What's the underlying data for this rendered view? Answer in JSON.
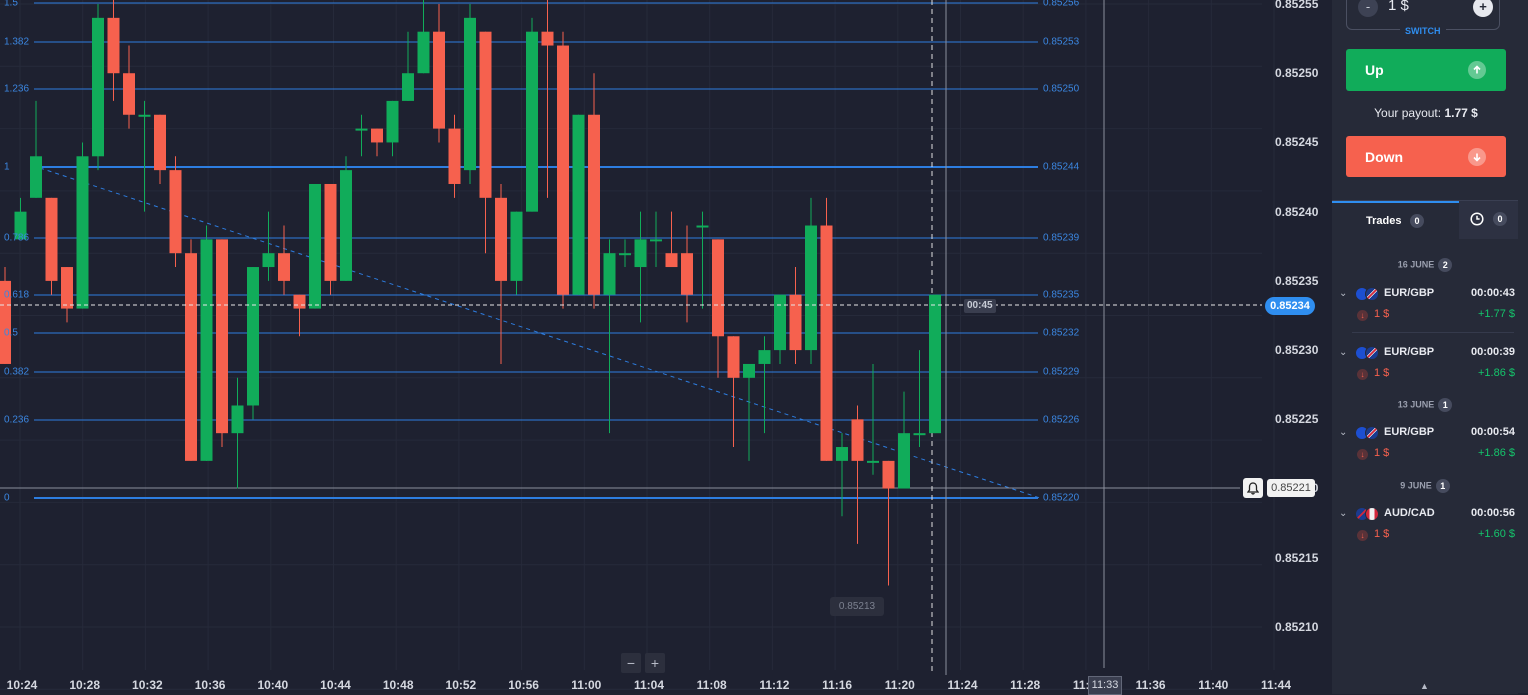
{
  "colors": {
    "bull": "#11ac5a",
    "bear": "#f6614e",
    "fib": "#2d7de0",
    "accent": "#2f8ef0",
    "background": "#1e2130"
  },
  "chart": {
    "price_axis": [
      "0.85255",
      "0.85250",
      "0.85245",
      "0.85240",
      "0.85235",
      "0.85230",
      "0.85225",
      "0.85220",
      "0.85215",
      "0.85210"
    ],
    "time_axis": [
      "10:24",
      "10:28",
      "10:32",
      "10:36",
      "10:40",
      "10:44",
      "10:48",
      "10:52",
      "10:56",
      "11:00",
      "11:04",
      "11:08",
      "11:12",
      "11:16",
      "11:20",
      "11:24",
      "11:28",
      "11:32",
      "11:36",
      "11:40",
      "11:44"
    ],
    "fib_levels": [
      {
        "ratio": "1.5",
        "price": "0.85256"
      },
      {
        "ratio": "1.382",
        "price": "0.85253"
      },
      {
        "ratio": "1.236",
        "price": "0.85250"
      },
      {
        "ratio": "1",
        "price": "0.85244"
      },
      {
        "ratio": "0.786",
        "price": "0.85239"
      },
      {
        "ratio": "0.618",
        "price": "0.85235"
      },
      {
        "ratio": "0.5",
        "price": "0.85232"
      },
      {
        "ratio": "0.382",
        "price": "0.85229"
      },
      {
        "ratio": "0.236",
        "price": "0.85226"
      },
      {
        "ratio": "0",
        "price": "0.85220"
      }
    ],
    "current_price": "0.85234",
    "countdown": "00:45",
    "alert_price": "0.85221",
    "low_marker": "0.85213",
    "cursor_time": "11:33",
    "candles": [
      [
        0.85235,
        0.85229,
        0.85229,
        0.85236
      ],
      [
        0.85238,
        0.8524,
        0.85238,
        0.85241
      ],
      [
        0.85241,
        0.85244,
        0.85241,
        0.85248
      ],
      [
        0.85241,
        0.85235,
        0.85234,
        0.85241
      ],
      [
        0.85236,
        0.85233,
        0.85232,
        0.85236
      ],
      [
        0.85233,
        0.85244,
        0.85233,
        0.85245
      ],
      [
        0.85244,
        0.85254,
        0.85243,
        0.85255
      ],
      [
        0.85254,
        0.8525,
        0.85248,
        0.85259
      ],
      [
        0.8525,
        0.85247,
        0.85246,
        0.85252
      ],
      [
        0.85247,
        0.85247,
        0.8524,
        0.85248
      ],
      [
        0.85247,
        0.85243,
        0.85242,
        0.85247
      ],
      [
        0.85243,
        0.85237,
        0.85236,
        0.85244
      ],
      [
        0.85237,
        0.85222,
        0.85222,
        0.85238
      ],
      [
        0.85222,
        0.85238,
        0.85222,
        0.85239
      ],
      [
        0.85238,
        0.85224,
        0.85223,
        0.85238
      ],
      [
        0.85224,
        0.85226,
        0.8522,
        0.85228
      ],
      [
        0.85226,
        0.85236,
        0.85225,
        0.85236
      ],
      [
        0.85236,
        0.85237,
        0.85235,
        0.8524
      ],
      [
        0.85237,
        0.85235,
        0.85234,
        0.85239
      ],
      [
        0.85234,
        0.85233,
        0.85231,
        0.85234
      ],
      [
        0.85233,
        0.85242,
        0.85233,
        0.85242
      ],
      [
        0.85242,
        0.85235,
        0.85234,
        0.85242
      ],
      [
        0.85235,
        0.85243,
        0.85235,
        0.85244
      ],
      [
        0.85246,
        0.85246,
        0.85244,
        0.85247
      ],
      [
        0.85246,
        0.85245,
        0.85244,
        0.85246
      ],
      [
        0.85245,
        0.85248,
        0.85244,
        0.85248
      ],
      [
        0.85248,
        0.8525,
        0.85248,
        0.85253
      ],
      [
        0.8525,
        0.85253,
        0.8525,
        0.85256
      ],
      [
        0.85253,
        0.85246,
        0.85245,
        0.85255
      ],
      [
        0.85246,
        0.85242,
        0.85241,
        0.85247
      ],
      [
        0.85243,
        0.85254,
        0.85242,
        0.85255
      ],
      [
        0.85253,
        0.85241,
        0.85237,
        0.85253
      ],
      [
        0.85241,
        0.85235,
        0.85229,
        0.85242
      ],
      [
        0.85235,
        0.8524,
        0.85234,
        0.8524
      ],
      [
        0.8524,
        0.85253,
        0.8524,
        0.85254
      ],
      [
        0.85253,
        0.85252,
        0.85241,
        0.85256
      ],
      [
        0.85252,
        0.85234,
        0.85233,
        0.85253
      ],
      [
        0.85234,
        0.85247,
        0.85234,
        0.85247
      ],
      [
        0.85247,
        0.85234,
        0.85233,
        0.8525
      ],
      [
        0.85234,
        0.85237,
        0.85224,
        0.85238
      ],
      [
        0.85237,
        0.85237,
        0.85236,
        0.85238
      ],
      [
        0.85236,
        0.85238,
        0.85232,
        0.8524
      ],
      [
        0.85238,
        0.85238,
        0.85236,
        0.8524
      ],
      [
        0.85237,
        0.85236,
        0.85236,
        0.8524
      ],
      [
        0.85237,
        0.85234,
        0.85232,
        0.85239
      ],
      [
        0.85239,
        0.85239,
        0.85233,
        0.8524
      ],
      [
        0.85238,
        0.85231,
        0.85228,
        0.85238
      ],
      [
        0.85231,
        0.85228,
        0.85223,
        0.85231
      ],
      [
        0.85228,
        0.85229,
        0.85222,
        0.85229
      ],
      [
        0.85229,
        0.8523,
        0.85224,
        0.85231
      ],
      [
        0.8523,
        0.85234,
        0.85229,
        0.85234
      ],
      [
        0.85234,
        0.8523,
        0.85229,
        0.85236
      ],
      [
        0.8523,
        0.85239,
        0.85229,
        0.85241
      ],
      [
        0.85239,
        0.85222,
        0.85222,
        0.85241
      ],
      [
        0.85222,
        0.85223,
        0.85218,
        0.85224
      ],
      [
        0.85225,
        0.85222,
        0.85216,
        0.85226
      ],
      [
        0.85222,
        0.85222,
        0.85221,
        0.85229
      ],
      [
        0.85222,
        0.8522,
        0.85213,
        0.85222
      ],
      [
        0.8522,
        0.85224,
        0.8522,
        0.85227
      ],
      [
        0.85224,
        0.85224,
        0.85223,
        0.8523
      ],
      [
        0.85224,
        0.85234,
        0.85224,
        0.85234
      ]
    ]
  },
  "controls": {
    "zoom_out": "−",
    "zoom_in": "+"
  },
  "sidebar": {
    "amount": "1 $",
    "amount_minus": "-",
    "amount_plus": "+",
    "switch_label": "SWITCH",
    "up_label": "Up",
    "down_label": "Down",
    "payout_label": "Your payout:",
    "payout_value": "1.77 $",
    "tabs": {
      "trades_label": "Trades",
      "trades_count": "0",
      "history_count": "0"
    },
    "trade_groups": [
      {
        "date": "16 JUNE",
        "count": "2",
        "trades": [
          {
            "pair": "EUR/GBP",
            "duration": "00:00:43",
            "amount": "1 $",
            "profit": "+1.77 $"
          },
          {
            "pair": "EUR/GBP",
            "duration": "00:00:39",
            "amount": "1 $",
            "profit": "+1.86 $"
          }
        ]
      },
      {
        "date": "13 JUNE",
        "count": "1",
        "trades": [
          {
            "pair": "EUR/GBP",
            "duration": "00:00:54",
            "amount": "1 $",
            "profit": "+1.86 $"
          }
        ]
      },
      {
        "date": "9 JUNE",
        "count": "1",
        "trades": [
          {
            "pair": "AUD/CAD",
            "duration": "00:00:56",
            "amount": "1 $",
            "profit": "+1.60 $"
          }
        ]
      }
    ]
  }
}
